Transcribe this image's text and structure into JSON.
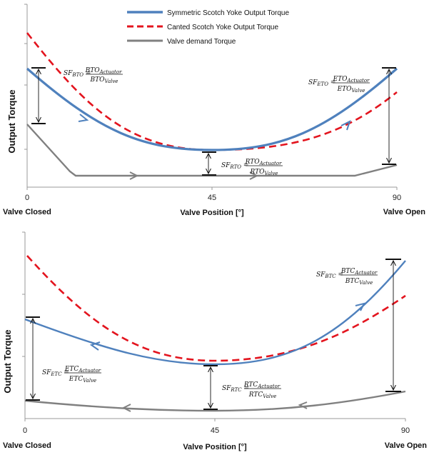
{
  "chart_data": [
    {
      "type": "line",
      "panel": "top",
      "xlabel": "Valve Position [°]",
      "ylabel": "Output Torque",
      "xlim": [
        0,
        90
      ],
      "x_ticks": [
        "0",
        "45",
        "90"
      ],
      "x_end_labels": {
        "left": "Valve Closed",
        "right": "Valve Open"
      },
      "legend": {
        "placement": "top-center",
        "entries": [
          {
            "label": "Symmetric Scotch Yoke Output Torque",
            "color": "#4f81bd",
            "style": "solid"
          },
          {
            "label": "Canted Scotch Yoke Output Torque",
            "color": "#e3141e",
            "style": "dashed"
          },
          {
            "label": "Valve demand Torque",
            "color": "#808080",
            "style": "solid"
          }
        ]
      },
      "series": [
        {
          "name": "Symmetric Scotch Yoke Output Torque",
          "color": "#4f81bd",
          "x": [
            0,
            15,
            30,
            45,
            60,
            75,
            90
          ],
          "y": [
            1.0,
            0.63,
            0.41,
            0.33,
            0.41,
            0.63,
            1.0
          ]
        },
        {
          "name": "Canted Scotch Yoke Output Torque",
          "color": "#e3141e",
          "x": [
            0,
            15,
            30,
            45,
            60,
            75,
            90
          ],
          "y": [
            1.3,
            0.72,
            0.43,
            0.33,
            0.37,
            0.53,
            0.79
          ]
        },
        {
          "name": "Valve demand Torque",
          "color": "#808080",
          "x": [
            0,
            10,
            12,
            45,
            82,
            90
          ],
          "y": [
            0.54,
            0.16,
            0.1,
            0.1,
            0.1,
            0.2
          ]
        }
      ],
      "annotations": [
        {
          "label": "SF",
          "sub": "BTO",
          "num": "BTO",
          "num_sub": "Actuator",
          "den": "BTO",
          "den_sub": "Valve"
        },
        {
          "label": "SF",
          "sub": "RTO",
          "num": "RTO",
          "num_sub": "Actuator",
          "den": "RTO",
          "den_sub": "Valve"
        },
        {
          "label": "SF",
          "sub": "ETO",
          "num": "ETO",
          "num_sub": "Actuator",
          "den": "ETO",
          "den_sub": "Valve"
        }
      ]
    },
    {
      "type": "line",
      "panel": "bottom",
      "xlabel": "Valve Position [°]",
      "ylabel": "Output Torque",
      "xlim": [
        0,
        90
      ],
      "x_ticks": [
        "0",
        "45",
        "90"
      ],
      "x_end_labels": {
        "left": "Valve Closed",
        "right": "Valve Open"
      },
      "series": [
        {
          "name": "Symmetric Scotch Yoke Output Torque",
          "color": "#4f81bd",
          "x": [
            0,
            15,
            30,
            45,
            60,
            75,
            90
          ],
          "y": [
            0.71,
            0.52,
            0.42,
            0.36,
            0.46,
            0.71,
            1.1
          ]
        },
        {
          "name": "Canted Scotch Yoke Output Torque",
          "color": "#e3141e",
          "x": [
            0,
            15,
            30,
            45,
            60,
            75,
            90
          ],
          "y": [
            1.2,
            0.71,
            0.46,
            0.37,
            0.45,
            0.6,
            0.82
          ]
        },
        {
          "name": "Valve demand Torque",
          "color": "#808080",
          "x": [
            0,
            15,
            30,
            45,
            60,
            75,
            90
          ],
          "y": [
            0.1,
            0.06,
            0.03,
            0.02,
            0.04,
            0.08,
            0.15
          ]
        }
      ],
      "annotations": [
        {
          "label": "SF",
          "sub": "BTC",
          "num": "BTC",
          "num_sub": "Actuator",
          "den": "BTC",
          "den_sub": "Valve"
        },
        {
          "label": "SF",
          "sub": "RTC",
          "num": "RTC",
          "num_sub": "Actuator",
          "den": "RTC",
          "den_sub": "Valve"
        },
        {
          "label": "SF",
          "sub": "ETC",
          "num": "ETC",
          "num_sub": "Actuator",
          "den": "ETC",
          "den_sub": "Valve"
        }
      ]
    }
  ]
}
